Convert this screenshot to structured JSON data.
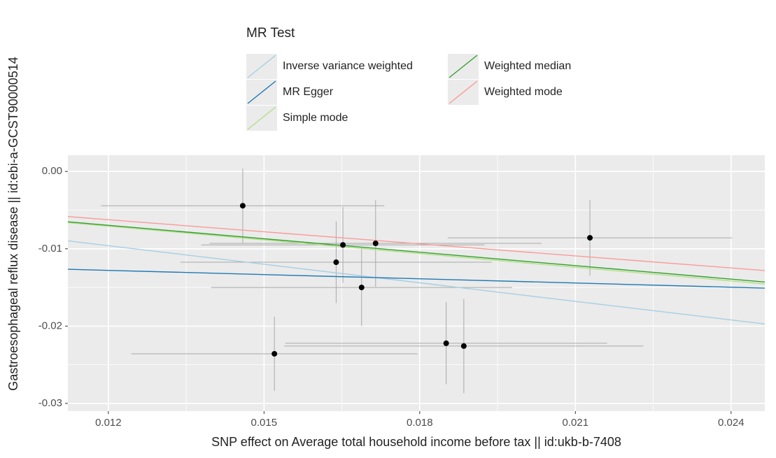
{
  "chart_data": {
    "type": "scatter",
    "x_label": "SNP effect on Average total household income before tax || id:ukb-b-7408",
    "y_label": "Gastroesophageal reflux disease || id:ebi-a-GCST90000514",
    "legend_title": "MR Test",
    "xlim": [
      0.01122,
      0.02465
    ],
    "ylim": [
      -0.031,
      0.0021
    ],
    "xticks": [
      0.012,
      0.015,
      0.018,
      0.021,
      0.024
    ],
    "yticks": [
      {
        "value": 0,
        "label": "0.00"
      },
      -0.01,
      -0.02,
      -0.03
    ],
    "grid": true,
    "points": {
      "color": "#000000",
      "errorbar_color": "#a9a9a9",
      "x": [
        0.01459,
        0.01652,
        0.01639,
        0.01715,
        0.01688,
        0.0152,
        0.01851,
        0.01885,
        0.02128
      ],
      "y": [
        -0.00443,
        -0.0095,
        -0.01174,
        -0.0093,
        -0.015,
        -0.02358,
        -0.02222,
        -0.02258,
        -0.00858
      ],
      "xerr": [
        0.00273,
        0.00273,
        0.003,
        0.0032,
        0.0029,
        0.00276,
        0.0031,
        0.00346,
        0.00274
      ],
      "yerr": [
        0.0048,
        0.0049,
        0.0053,
        0.0056,
        0.005,
        0.0048,
        0.0053,
        0.0061,
        0.0049
      ]
    },
    "series": [
      {
        "name": "Inverse variance weighted",
        "color": "#a6cee3",
        "intercept": 0,
        "slope": -0.8
      },
      {
        "name": "MR Egger",
        "color": "#1f78b4",
        "intercept": -0.01061,
        "slope": -0.1817
      },
      {
        "name": "Simple mode",
        "color": "#b2df8a",
        "intercept": 0,
        "slope": -0.59
      },
      {
        "name": "Weighted median",
        "color": "#33a02c",
        "intercept": 0,
        "slope": -0.58
      },
      {
        "name": "Weighted mode",
        "color": "#fb9a99",
        "intercept": 0,
        "slope": -0.52
      }
    ]
  }
}
